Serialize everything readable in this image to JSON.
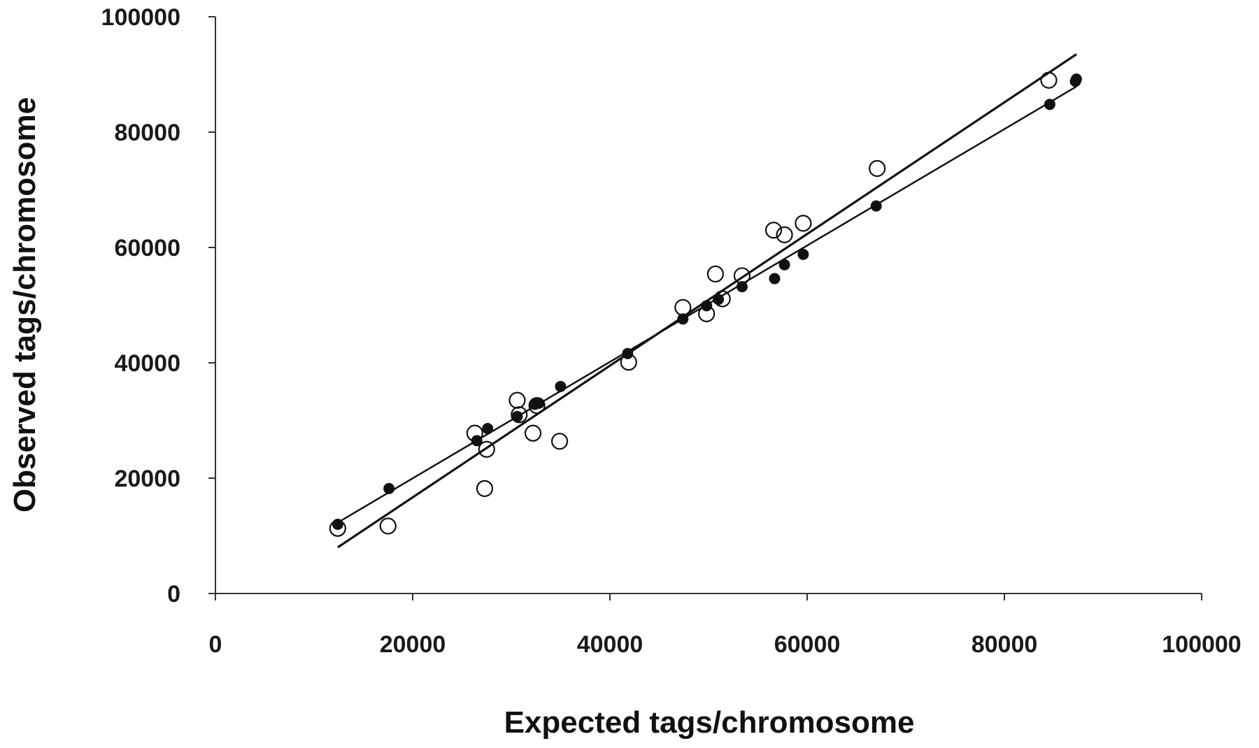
{
  "chart_data": {
    "type": "scatter",
    "title": "",
    "xlabel": "Expected tags/chromosome",
    "ylabel": "Observed tags/chromosome",
    "xlim": [
      0,
      100000
    ],
    "ylim": [
      0,
      100000
    ],
    "xticks": [
      "0",
      "20000",
      "40000",
      "60000",
      "80000",
      "100000"
    ],
    "yticks": [
      "0",
      "20000",
      "40000",
      "60000",
      "80000",
      "100000"
    ],
    "grid": false,
    "legend": "none",
    "colors": {
      "filled": "#111111",
      "open_stroke": "#111111",
      "open_fill": "#ffffff",
      "axis": "#333333"
    },
    "series": [
      {
        "marker": "filled-circle",
        "points": [
          [
            12400,
            12000
          ],
          [
            17600,
            18200
          ],
          [
            26500,
            26500
          ],
          [
            27600,
            28600
          ],
          [
            30600,
            30700
          ],
          [
            32400,
            32800
          ],
          [
            32800,
            33000
          ],
          [
            35000,
            35900
          ],
          [
            41800,
            41600
          ],
          [
            47400,
            47600
          ],
          [
            49800,
            49900
          ],
          [
            51000,
            51000
          ],
          [
            53400,
            53200
          ],
          [
            56700,
            54600
          ],
          [
            57700,
            57000
          ],
          [
            59600,
            58800
          ],
          [
            67000,
            67200
          ],
          [
            84600,
            84800
          ],
          [
            87200,
            88800
          ],
          [
            87300,
            89200
          ]
        ],
        "fit": [
          [
            12400,
            12300
          ],
          [
            87300,
            87900
          ]
        ]
      },
      {
        "marker": "open-circle",
        "points": [
          [
            12400,
            11300
          ],
          [
            17500,
            11700
          ],
          [
            26300,
            27800
          ],
          [
            27300,
            18200
          ],
          [
            27500,
            25000
          ],
          [
            30600,
            33500
          ],
          [
            30800,
            31000
          ],
          [
            32200,
            27800
          ],
          [
            32600,
            32600
          ],
          [
            34900,
            26400
          ],
          [
            41900,
            40100
          ],
          [
            47400,
            49600
          ],
          [
            49800,
            48500
          ],
          [
            50700,
            55400
          ],
          [
            51400,
            51100
          ],
          [
            53400,
            55100
          ],
          [
            56600,
            63000
          ],
          [
            57700,
            62200
          ],
          [
            59600,
            64200
          ],
          [
            67100,
            73700
          ],
          [
            84500,
            89000
          ]
        ],
        "fit": [
          [
            12400,
            8000
          ],
          [
            87300,
            93500
          ]
        ]
      }
    ]
  }
}
